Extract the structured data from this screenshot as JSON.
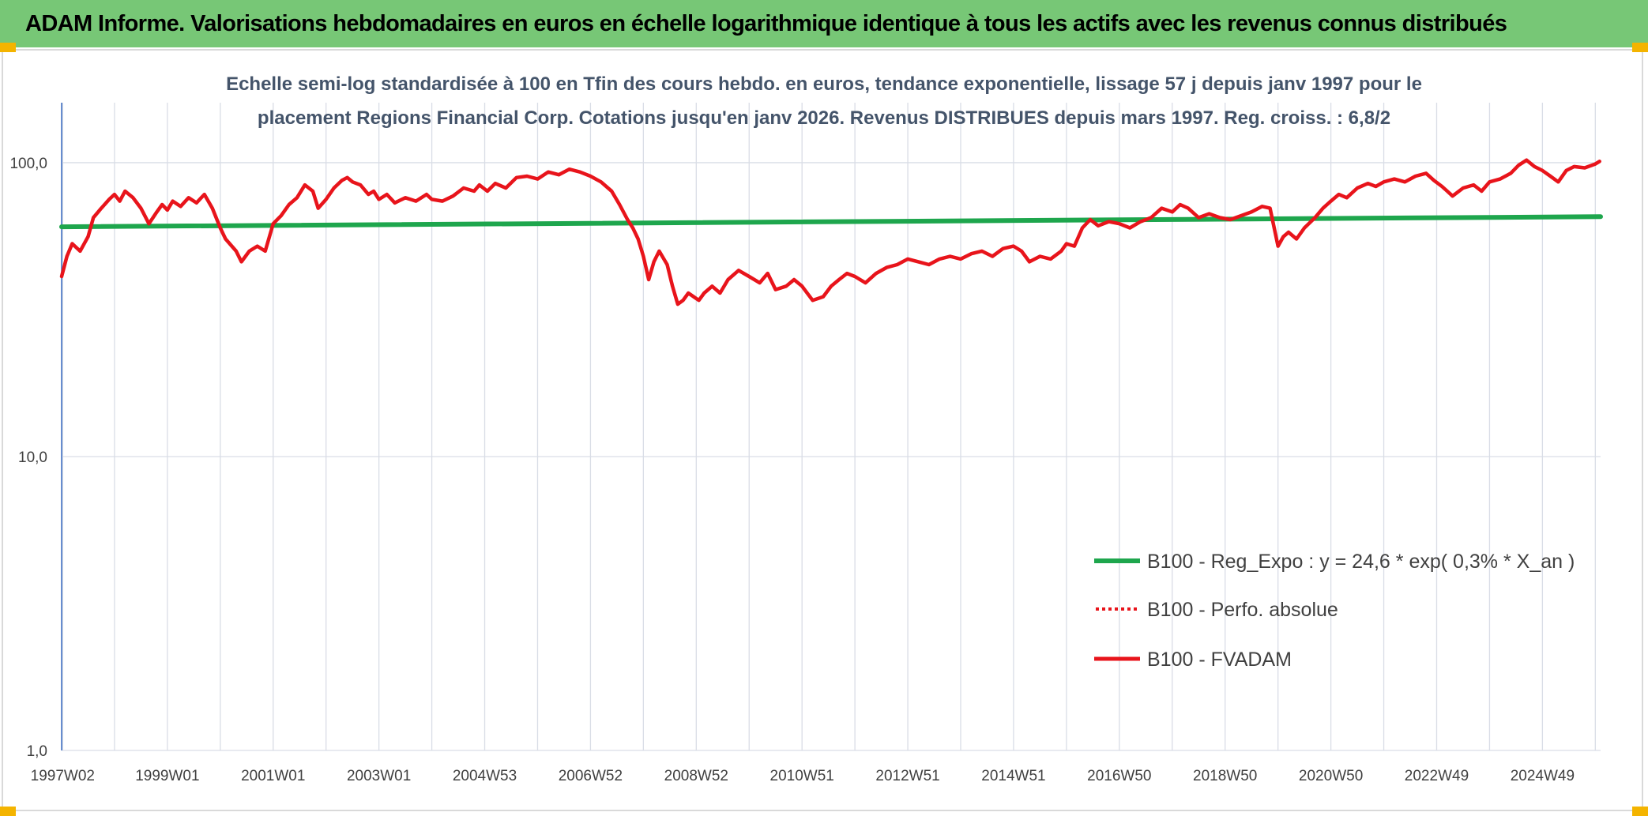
{
  "header": {
    "title": "ADAM Informe. Valorisations hebdomadaires en euros en échelle logarithmique identique à tous les actifs avec les revenus connus distribués"
  },
  "colors": {
    "header_bg": "#77c776",
    "trend": "#1ea64d",
    "fvadam": "#e8141b",
    "grid": "#d9dde6",
    "axis": "#4472c4",
    "accent": "#f4b400"
  },
  "chart_data": {
    "type": "line",
    "title_lines": [
      "Echelle semi-log standardisée à 100 en Tfin des cours hebdo. en euros, tendance exponentielle, lissage 57 j depuis janv 1997 pour le",
      "placement Regions Financial Corp. Cotations jusqu'en janv 2026. Revenus DISTRIBUES depuis mars 1997. Reg. croiss. : 6,8/2"
    ],
    "yscale": "log",
    "ylim": [
      1,
      160
    ],
    "xlim": [
      1997.0,
      2026.1
    ],
    "y_ticks": [
      {
        "value": 1,
        "label": "1,0"
      },
      {
        "value": 10,
        "label": "10,0"
      },
      {
        "value": 100,
        "label": "100,0"
      }
    ],
    "x_ticks": [
      {
        "value": 1997.02,
        "label": "1997W02"
      },
      {
        "value": 1999.0,
        "label": "1999W01"
      },
      {
        "value": 2001.0,
        "label": "2001W01"
      },
      {
        "value": 2003.0,
        "label": "2003W01"
      },
      {
        "value": 2005.0,
        "label": "2004W53"
      },
      {
        "value": 2007.0,
        "label": "2006W52"
      },
      {
        "value": 2009.0,
        "label": "2008W52"
      },
      {
        "value": 2011.0,
        "label": "2010W51"
      },
      {
        "value": 2013.0,
        "label": "2012W51"
      },
      {
        "value": 2015.0,
        "label": "2014W51"
      },
      {
        "value": 2017.0,
        "label": "2016W50"
      },
      {
        "value": 2019.0,
        "label": "2018W50"
      },
      {
        "value": 2021.0,
        "label": "2020W50"
      },
      {
        "value": 2023.0,
        "label": "2022W49"
      },
      {
        "value": 2025.0,
        "label": "2024W49"
      }
    ],
    "legend": {
      "position": "bottom-right",
      "entries": [
        {
          "key": "trend",
          "label": "B100 - Reg_Expo : y = 24,6 * exp( 0,3% *  X_an )",
          "style": "solid-green"
        },
        {
          "key": "perf",
          "label": "B100 - Perfo. absolue",
          "style": "dotted-red"
        },
        {
          "key": "fvadam",
          "label": "B100 - FVADAM",
          "style": "solid-red"
        }
      ]
    },
    "series": [
      {
        "name": "B100 - Reg_Expo : y = 24,6 * exp( 0,3% *  X_an )",
        "key": "trend",
        "x": [
          1997.0,
          2026.1
        ],
        "values": [
          60.5,
          65.5
        ]
      },
      {
        "name": "B100 - FVADAM",
        "key": "fvadam",
        "x": [
          1997.0,
          1997.1,
          1997.2,
          1997.35,
          1997.5,
          1997.6,
          1997.75,
          1997.9,
          1998.0,
          1998.1,
          1998.2,
          1998.35,
          1998.5,
          1998.65,
          1998.8,
          1998.9,
          1999.0,
          1999.1,
          1999.25,
          1999.4,
          1999.55,
          1999.7,
          1999.85,
          2000.0,
          2000.1,
          2000.3,
          2000.4,
          2000.55,
          2000.7,
          2000.85,
          2001.0,
          2001.15,
          2001.3,
          2001.45,
          2001.6,
          2001.75,
          2001.85,
          2002.0,
          2002.15,
          2002.3,
          2002.4,
          2002.5,
          2002.65,
          2002.8,
          2002.9,
          2003.0,
          2003.15,
          2003.3,
          2003.5,
          2003.7,
          2003.9,
          2004.0,
          2004.2,
          2004.4,
          2004.6,
          2004.8,
          2004.9,
          2005.05,
          2005.2,
          2005.4,
          2005.6,
          2005.8,
          2006.0,
          2006.2,
          2006.4,
          2006.6,
          2006.8,
          2007.0,
          2007.2,
          2007.4,
          2007.55,
          2007.7,
          2007.8,
          2007.9,
          2008.0,
          2008.1,
          2008.2,
          2008.3,
          2008.45,
          2008.55,
          2008.65,
          2008.75,
          2008.85,
          2008.95,
          2009.05,
          2009.15,
          2009.3,
          2009.45,
          2009.6,
          2009.8,
          2010.0,
          2010.2,
          2010.35,
          2010.5,
          2010.7,
          2010.85,
          2011.0,
          2011.2,
          2011.4,
          2011.55,
          2011.7,
          2011.85,
          2012.0,
          2012.2,
          2012.4,
          2012.6,
          2012.8,
          2013.0,
          2013.2,
          2013.4,
          2013.6,
          2013.8,
          2014.0,
          2014.2,
          2014.4,
          2014.6,
          2014.8,
          2015.0,
          2015.15,
          2015.3,
          2015.5,
          2015.7,
          2015.9,
          2016.0,
          2016.15,
          2016.3,
          2016.45,
          2016.6,
          2016.8,
          2017.0,
          2017.2,
          2017.4,
          2017.6,
          2017.8,
          2018.0,
          2018.15,
          2018.3,
          2018.5,
          2018.7,
          2018.9,
          2019.1,
          2019.3,
          2019.5,
          2019.7,
          2019.85,
          2020.0,
          2020.1,
          2020.2,
          2020.35,
          2020.5,
          2020.7,
          2020.85,
          2021.0,
          2021.15,
          2021.3,
          2021.5,
          2021.7,
          2021.85,
          2022.0,
          2022.2,
          2022.4,
          2022.6,
          2022.8,
          2022.95,
          2023.1,
          2023.2,
          2023.3,
          2023.5,
          2023.7,
          2023.85,
          2024.0,
          2024.2,
          2024.4,
          2024.55,
          2024.7,
          2024.85,
          2025.0,
          2025.15,
          2025.3,
          2025.45,
          2025.6,
          2025.8,
          2026.0,
          2026.08
        ],
        "values": [
          41,
          48,
          53,
          50,
          56,
          65,
          70,
          75,
          78,
          74,
          80,
          76,
          70,
          62,
          68,
          72,
          69,
          74,
          71,
          76,
          73,
          78,
          70,
          60,
          55,
          50,
          46,
          50,
          52,
          50,
          62,
          66,
          72,
          76,
          84,
          80,
          70,
          75,
          82,
          87,
          89,
          86,
          84,
          78,
          80,
          75,
          78,
          73,
          76,
          74,
          78,
          75,
          74,
          77,
          82,
          80,
          84,
          80,
          85,
          82,
          89,
          90,
          88,
          93,
          91,
          95,
          93,
          90,
          86,
          80,
          72,
          64,
          60,
          55,
          48,
          40,
          46,
          50,
          45,
          38,
          33,
          34,
          36,
          35,
          34,
          36,
          38,
          36,
          40,
          43,
          41,
          39,
          42,
          37,
          38,
          40,
          38,
          34,
          35,
          38,
          40,
          42,
          41,
          39,
          42,
          44,
          45,
          47,
          46,
          45,
          47,
          48,
          47,
          49,
          50,
          48,
          51,
          52,
          50,
          46,
          48,
          47,
          50,
          53,
          52,
          60,
          64,
          61,
          63,
          62,
          60,
          63,
          65,
          70,
          68,
          72,
          70,
          65,
          67,
          65,
          64,
          66,
          68,
          71,
          70,
          52,
          56,
          58,
          55,
          60,
          65,
          70,
          74,
          78,
          76,
          82,
          85,
          83,
          86,
          88,
          86,
          90,
          92,
          87,
          83,
          80,
          77,
          82,
          84,
          80,
          86,
          88,
          92,
          98,
          102,
          97,
          94,
          90,
          86,
          94,
          97,
          96,
          99,
          101
        ]
      }
    ]
  }
}
